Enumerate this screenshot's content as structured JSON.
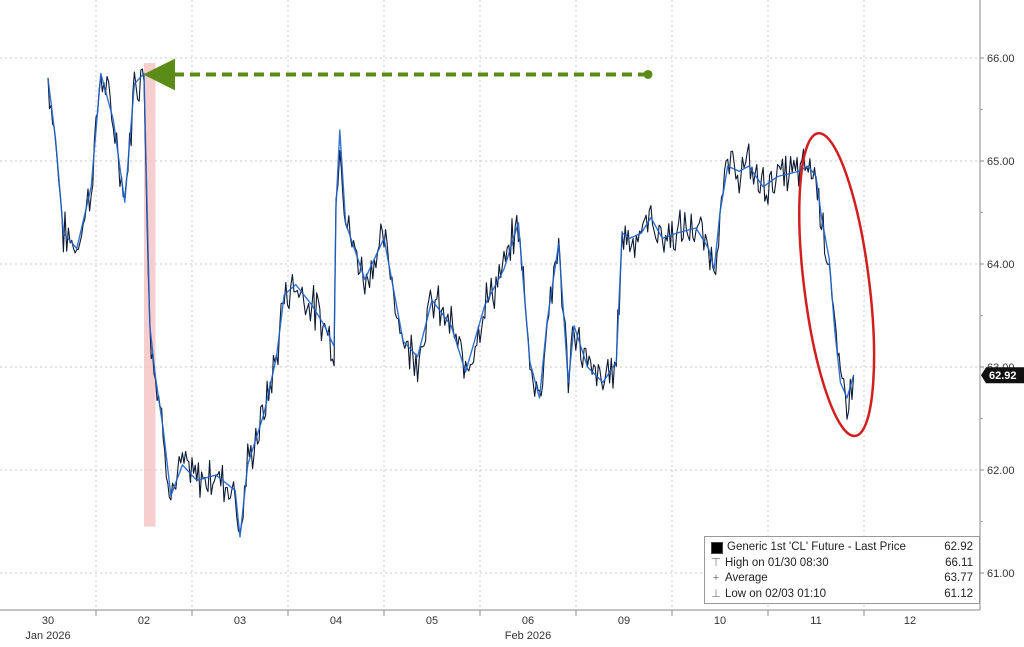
{
  "chart_data": {
    "type": "line",
    "title": "",
    "xlabel": "",
    "ylabel": "",
    "ylim": [
      60.85,
      66.55
    ],
    "y_ticks": [
      "61.00",
      "62.00",
      "63.00",
      "64.00",
      "65.00",
      "66.00"
    ],
    "x_ticks": [
      "30",
      "02",
      "03",
      "04",
      "05",
      "06",
      "09",
      "10",
      "11",
      "12"
    ],
    "x_month_labels": [
      "Jan 2026",
      "Feb 2026"
    ],
    "grid": true,
    "legend_position": "bottom-right",
    "last_price_label": "62.92",
    "series": [
      {
        "name": "Generic 1st 'CL' Future - Last Price",
        "color": "#1f63c9",
        "points": [
          [
            0,
            65.8
          ],
          [
            0.08,
            65.2
          ],
          [
            0.16,
            64.3
          ],
          [
            0.3,
            64.15
          ],
          [
            0.45,
            64.75
          ],
          [
            0.55,
            65.85
          ],
          [
            0.68,
            65.4
          ],
          [
            0.8,
            64.6
          ],
          [
            0.9,
            65.75
          ],
          [
            1.0,
            65.85
          ],
          [
            1.06,
            63.4
          ],
          [
            1.12,
            62.9
          ],
          [
            1.2,
            62.4
          ],
          [
            1.28,
            61.75
          ],
          [
            1.4,
            62.05
          ],
          [
            1.55,
            61.9
          ],
          [
            1.75,
            61.95
          ],
          [
            1.95,
            61.8
          ],
          [
            2.0,
            61.35
          ],
          [
            2.08,
            62.05
          ],
          [
            2.25,
            62.55
          ],
          [
            2.38,
            63.1
          ],
          [
            2.46,
            63.7
          ],
          [
            2.58,
            63.8
          ],
          [
            2.75,
            63.6
          ],
          [
            2.88,
            63.4
          ],
          [
            2.98,
            63.2
          ],
          [
            3.0,
            64.55
          ],
          [
            3.04,
            65.3
          ],
          [
            3.1,
            64.4
          ],
          [
            3.3,
            63.85
          ],
          [
            3.5,
            64.25
          ],
          [
            3.7,
            63.25
          ],
          [
            3.85,
            63.1
          ],
          [
            4.0,
            63.65
          ],
          [
            4.2,
            63.4
          ],
          [
            4.35,
            62.95
          ],
          [
            4.55,
            63.6
          ],
          [
            4.75,
            63.95
          ],
          [
            4.9,
            64.4
          ],
          [
            5.02,
            63.05
          ],
          [
            5.12,
            62.7
          ],
          [
            5.2,
            63.45
          ],
          [
            5.32,
            64.2
          ],
          [
            5.42,
            62.85
          ],
          [
            5.48,
            63.4
          ],
          [
            5.62,
            63.0
          ],
          [
            5.78,
            62.85
          ],
          [
            5.92,
            63.05
          ],
          [
            5.98,
            64.3
          ],
          [
            6.06,
            64.25
          ],
          [
            6.18,
            64.3
          ],
          [
            6.28,
            64.45
          ],
          [
            6.4,
            64.25
          ],
          [
            6.55,
            64.3
          ],
          [
            6.75,
            64.35
          ],
          [
            6.88,
            64.15
          ],
          [
            6.94,
            63.95
          ],
          [
            7.0,
            64.5
          ],
          [
            7.08,
            64.95
          ],
          [
            7.2,
            64.9
          ],
          [
            7.3,
            64.95
          ],
          [
            7.45,
            64.75
          ],
          [
            7.6,
            64.85
          ],
          [
            7.82,
            64.9
          ],
          [
            7.92,
            64.95
          ],
          [
            8.0,
            64.85
          ],
          [
            8.06,
            64.45
          ],
          [
            8.14,
            64.05
          ],
          [
            8.2,
            63.35
          ],
          [
            8.26,
            62.85
          ],
          [
            8.33,
            62.7
          ],
          [
            8.4,
            62.92
          ]
        ]
      }
    ],
    "annotations": [
      {
        "type": "dashed-arrow",
        "color": "#5b8c18",
        "from": [
          6.25,
          65.84
        ],
        "to": [
          0.95,
          65.84
        ]
      },
      {
        "type": "shaded-band",
        "color": "#f5c6c6",
        "x_range": [
          1.0,
          1.12
        ],
        "y_range": [
          61.45,
          65.95
        ]
      },
      {
        "type": "ellipse",
        "color": "#d11f1f",
        "center": [
          8.22,
          63.8
        ],
        "rx": 0.34,
        "ry": 1.48
      }
    ]
  },
  "legend": {
    "rows": [
      {
        "label": "Generic 1st 'CL' Future - Last Price",
        "value": "62.92",
        "icon": "black-square"
      },
      {
        "label": "High on 01/30 08:30",
        "value": "66.11",
        "icon": "high-marker"
      },
      {
        "label": "Average",
        "value": "63.77",
        "icon": "average-marker"
      },
      {
        "label": "Low on 02/03 01:10",
        "value": "61.12",
        "icon": "low-marker"
      }
    ]
  }
}
